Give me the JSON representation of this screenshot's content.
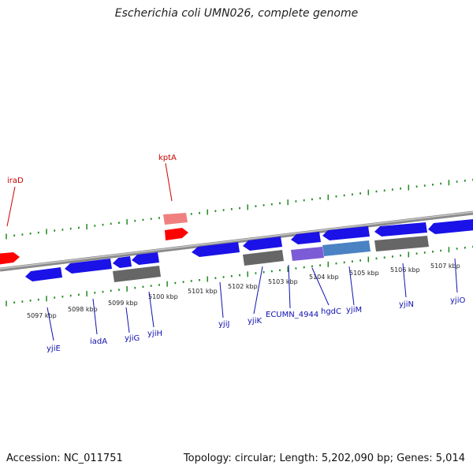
{
  "title": "Escherichia coli UMN026, complete genome",
  "footer": {
    "accession": "Accession: NC_011751",
    "summary": "Topology: circular; Length: 5,202,090 bp; Genes: 5,014"
  },
  "colors": {
    "forward_gene": "#ff0000",
    "forward_gene_light": "#f08080",
    "reverse_gene": "#1a12e6",
    "pseudo_gene": "#666666",
    "hypothetical_gene": "#7b5bd6",
    "other_gene": "#4a82c4",
    "backbone": "#8a8a8a",
    "ticks": "#1f8a1f",
    "forward_label": "#cc0000",
    "reverse_label": "#1010b0"
  },
  "scale_labels": [
    "5097 kbp",
    "5098 kbp",
    "5099 kbp",
    "5100 kbp",
    "5101 kbp",
    "5102 kbp",
    "5103 kbp",
    "5104 kbp",
    "5105 kbp",
    "5106 kbp",
    "5107 kbp"
  ],
  "genes": [
    {
      "name": "iraD",
      "strand": "forward"
    },
    {
      "name": "kptA",
      "strand": "forward"
    },
    {
      "name": "yjiE",
      "strand": "reverse"
    },
    {
      "name": "iadA",
      "strand": "reverse"
    },
    {
      "name": "yjiG",
      "strand": "reverse"
    },
    {
      "name": "yjiH",
      "strand": "reverse"
    },
    {
      "name": "yjiJ",
      "strand": "reverse"
    },
    {
      "name": "yjiK",
      "strand": "reverse"
    },
    {
      "name": "ECUMN_4944",
      "strand": "reverse"
    },
    {
      "name": "hgdC",
      "strand": "reverse"
    },
    {
      "name": "yjiM",
      "strand": "reverse"
    },
    {
      "name": "yjiN",
      "strand": "reverse"
    },
    {
      "name": "yjiO",
      "strand": "reverse"
    }
  ]
}
